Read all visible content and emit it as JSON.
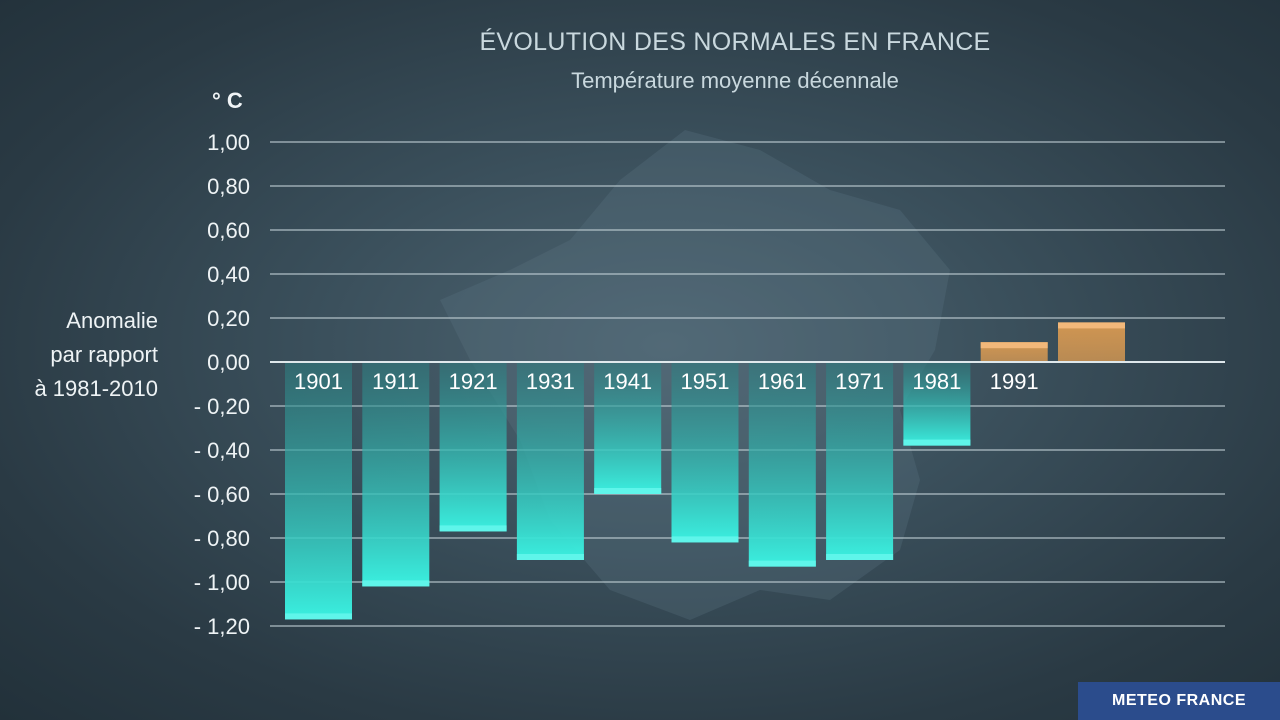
{
  "title": "ÉVOLUTION DES NORMALES EN FRANCE",
  "subtitle": "Température moyenne décennale",
  "unit_label": "° C",
  "y_axis_label_lines": [
    "Anomalie",
    "par rapport",
    "à 1981-2010"
  ],
  "logo_text": "METEO FRANCE",
  "chart_data": {
    "type": "bar",
    "title": "ÉVOLUTION DES NORMALES EN FRANCE",
    "subtitle": "Température moyenne décennale",
    "ylabel": "Anomalie par rapport à 1981-2010",
    "unit": "° C",
    "categories": [
      "1901",
      "1911",
      "1921",
      "1931",
      "1941",
      "1951",
      "1961",
      "1971",
      "1981",
      "1991",
      ""
    ],
    "values": [
      -1.17,
      -1.02,
      -0.77,
      -0.9,
      -0.6,
      -0.82,
      -0.93,
      -0.9,
      -0.38,
      0.09,
      0.18
    ],
    "ylim": [
      -1.2,
      1.0
    ],
    "yticks": [
      1.0,
      0.8,
      0.6,
      0.4,
      0.2,
      0.0,
      -0.2,
      -0.4,
      -0.6,
      -0.8,
      -1.0,
      -1.2
    ],
    "ytick_labels": [
      "1,00",
      "0,80",
      "0,60",
      "0,40",
      "0,20",
      "0,00",
      "- 0,20",
      "- 0,40",
      "- 0,60",
      "- 0,80",
      "- 1,00",
      "- 1,20"
    ],
    "grid": true,
    "colors": {
      "negative_top": "#2e7d80",
      "negative_bottom": "#3af0e0",
      "negative_cap": "#5ff5ea",
      "positive": "#d99a52",
      "positive_cap": "#f2b87a",
      "gridline": "#c8d6dc",
      "zero_line": "#e8f0f3"
    }
  }
}
